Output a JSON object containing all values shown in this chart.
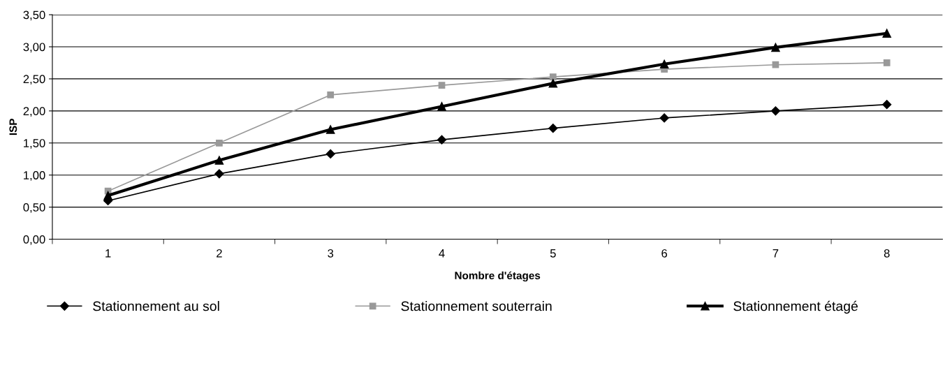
{
  "chart_data": {
    "type": "line",
    "xlabel": "Nombre d'étages",
    "ylabel": "ISP",
    "categories": [
      "1",
      "2",
      "3",
      "4",
      "5",
      "6",
      "7",
      "8"
    ],
    "series": [
      {
        "name": "Stationnement au sol",
        "color": "#000000",
        "marker": "diamond",
        "values": [
          0.6,
          1.02,
          1.33,
          1.55,
          1.73,
          1.89,
          2.0,
          2.1
        ]
      },
      {
        "name": "Stationnement souterrain",
        "color": "#999999",
        "marker": "square",
        "values": [
          0.75,
          1.5,
          2.25,
          2.4,
          2.53,
          2.65,
          2.72,
          2.75
        ]
      },
      {
        "name": "Stationnement étagé",
        "color": "#000000",
        "marker": "triangle",
        "values": [
          0.68,
          1.23,
          1.71,
          2.07,
          2.43,
          2.73,
          2.99,
          3.21
        ]
      }
    ],
    "ylim": [
      0,
      3.5
    ],
    "yticks": [
      {
        "value": 0,
        "label": "0,00"
      },
      {
        "value": 0.5,
        "label": "0,50"
      },
      {
        "value": 1,
        "label": "1,00"
      },
      {
        "value": 1.5,
        "label": "1,50"
      },
      {
        "value": 2,
        "label": "2,00"
      },
      {
        "value": 2.5,
        "label": "2,50"
      },
      {
        "value": 3,
        "label": "3,00"
      },
      {
        "value": 3.5,
        "label": "3,50"
      }
    ],
    "grid": "y",
    "legend": "bottom",
    "line_style": "solid"
  }
}
